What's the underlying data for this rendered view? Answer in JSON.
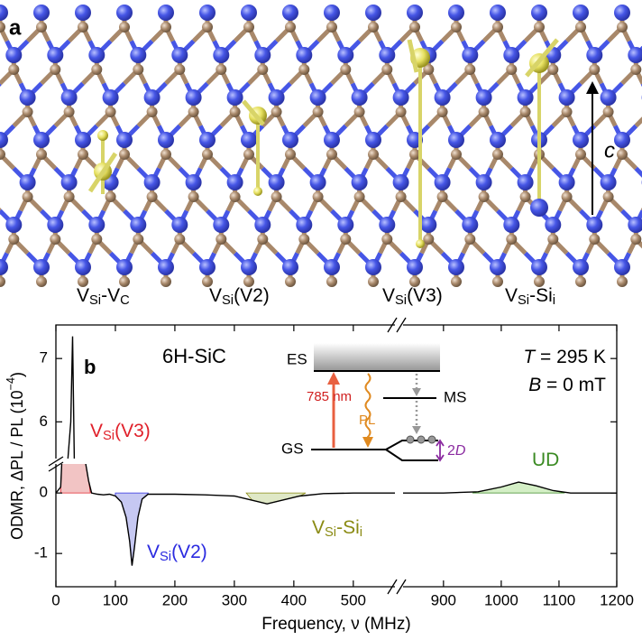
{
  "panel_a": {
    "label": "a",
    "axis": "c",
    "defects": [
      [
        "V",
        "Si",
        "-V",
        "C"
      ],
      [
        "V",
        "Si",
        "(V2)"
      ],
      [
        "V",
        "Si",
        "(V3)"
      ],
      [
        "V",
        "Si",
        "-Si",
        "i"
      ]
    ]
  },
  "chart_data": {
    "type": "line",
    "panel_label": "b",
    "sample": "6H-SiC",
    "conditions": [
      [
        "T",
        " = 295 K"
      ],
      [
        "B",
        " = 0 mT"
      ]
    ],
    "x_label": "Frequency, ν (MHz)",
    "y_label": [
      "ODMR, ΔPL / PL (10",
      "−4",
      ")"
    ],
    "xlim": [
      0,
      1200
    ],
    "x_break": [
      570,
      830
    ],
    "ylim": [
      -1.55,
      7.53
    ],
    "y_break": [
      0.48,
      5.42
    ],
    "xticks": [
      0,
      100,
      200,
      300,
      400,
      500,
      900,
      1000,
      1100,
      1200
    ],
    "yticks": [
      -1,
      0,
      6,
      7
    ],
    "series": [
      {
        "color": "#000000",
        "x": [
          0,
          8,
          10,
          20,
          25,
          28,
          31,
          35,
          45,
          50,
          55,
          60,
          70,
          80,
          90,
          100,
          110,
          118,
          124,
          128,
          132,
          138,
          145,
          155,
          200,
          250,
          300,
          330,
          355,
          380,
          410,
          450,
          500,
          550,
          570,
          830,
          900,
          960,
          1000,
          1030,
          1060,
          1090,
          1120,
          1160,
          1200
        ],
        "values": [
          0,
          0.1,
          3,
          4,
          6,
          7.35,
          5,
          4,
          3,
          1,
          0.2,
          0,
          -0.02,
          -0.03,
          -0.02,
          -0.05,
          -0.15,
          -0.4,
          -0.8,
          -1.2,
          -0.9,
          -0.4,
          -0.1,
          -0.02,
          -0.02,
          -0.03,
          -0.05,
          -0.12,
          -0.18,
          -0.12,
          -0.05,
          -0.01,
          0,
          0,
          0,
          0,
          0,
          0.02,
          0.1,
          0.18,
          0.12,
          0.04,
          0,
          0,
          0
        ]
      }
    ],
    "regions": [
      {
        "label": [
          "V",
          "Si",
          "(V3)"
        ],
        "color": "#e0202a",
        "fill": "#f2c4c4",
        "x_range": [
          8,
          58
        ]
      },
      {
        "label": [
          "V",
          "Si",
          "(V2)"
        ],
        "color": "#2a2ae0",
        "fill": "#c6c8f2",
        "x_range": [
          100,
          155
        ]
      },
      {
        "label": [
          "V",
          "Si",
          "-Si",
          "i"
        ],
        "color": "#8a8a12",
        "fill": "#dfe8c6",
        "x_range": [
          320,
          420
        ]
      },
      {
        "label": [
          "UD"
        ],
        "color": "#3a8a22",
        "fill": "#d4efc6",
        "x_range": [
          950,
          1110
        ]
      }
    ],
    "inset": {
      "es": "ES",
      "gs": "GS",
      "ms": "MS",
      "laser": "785 nm",
      "pl": "PL",
      "split": [
        "2",
        "D"
      ]
    }
  }
}
